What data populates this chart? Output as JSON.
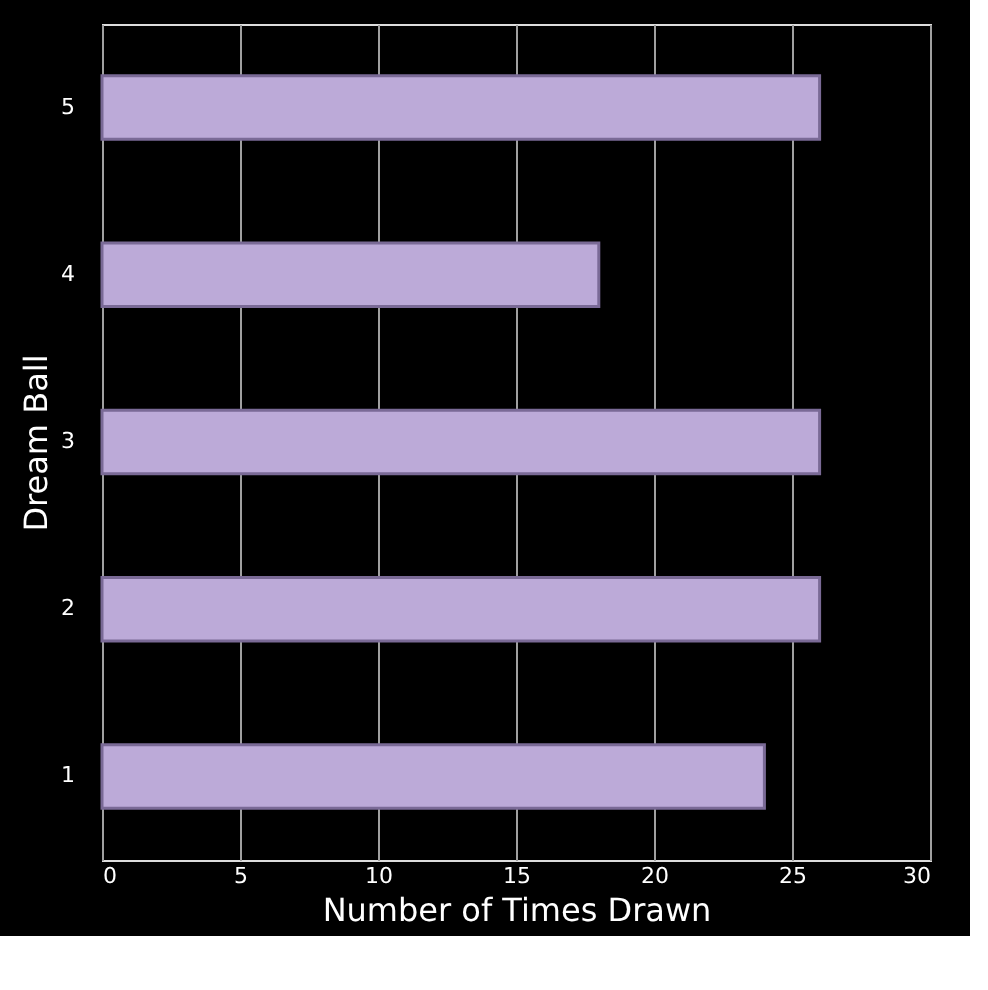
{
  "chart_data": {
    "type": "bar",
    "orientation": "horizontal",
    "xlabel": "Number of Times Drawn",
    "ylabel": "Dream Ball",
    "categories": [
      "5",
      "4",
      "3",
      "2",
      "1"
    ],
    "values": [
      26,
      18,
      26,
      26,
      24
    ],
    "color": "#bcaad8",
    "xlim": [
      0,
      30
    ],
    "xticks": [
      0,
      5,
      10,
      15,
      20,
      25,
      30
    ],
    "grid": "x"
  }
}
